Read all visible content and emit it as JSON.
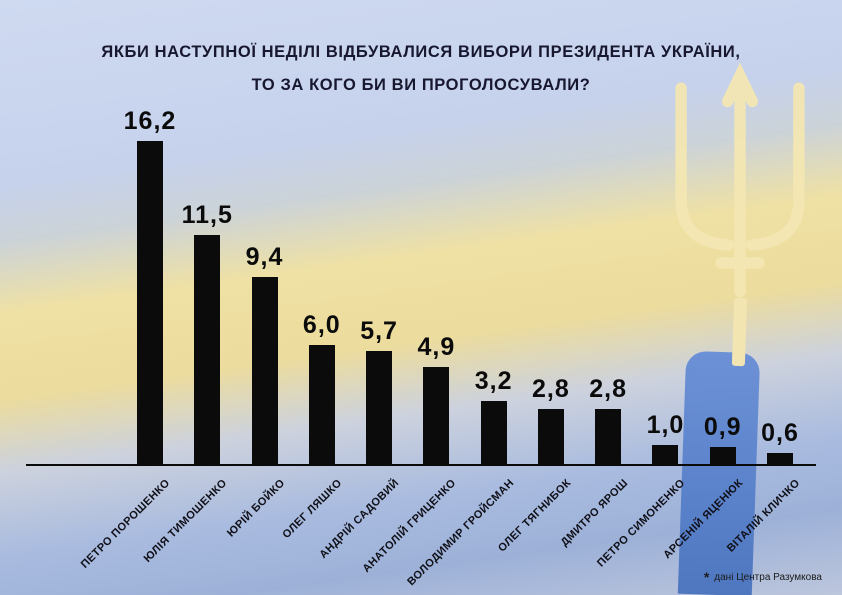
{
  "title": {
    "line1": "ЯКБИ НАСТУПНОЇ НЕДІЛІ ВІДБУВАЛИСЯ ВИБОРИ ПРЕЗИДЕНТА УКРАЇНИ,",
    "line2": "ТО ЗА КОГО БИ ВИ ПРОГОЛОСУВАЛИ?"
  },
  "footnote": {
    "mark": "*",
    "text": "дані Центра Разумкова"
  },
  "colors": {
    "bar": "#0b0b0b",
    "title_text": "#17172f",
    "flag_blue": "#a9bbdf",
    "flag_yellow": "#efe1a4",
    "trident_cream": "#f4e7b3",
    "sleeve_blue": "#5a82ca"
  },
  "chart_data": {
    "type": "bar",
    "title": "ЯКБИ НАСТУПНОЇ НЕДІЛІ ВІДБУВАЛИСЯ ВИБОРИ ПРЕЗИДЕНТА УКРАЇНИ, ТО ЗА КОГО БИ ВИ ПРОГОЛОСУВАЛИ?",
    "categories": [
      "ПЕТРО ПОРОШЕНКО",
      "ЮЛІЯ ТИМОШЕНКО",
      "ЮРІЙ БОЙКО",
      "ОЛЕГ ЛЯШКО",
      "АНДРІЙ САДОВИЙ",
      "АНАТОЛІЙ ГРИЦЕНКО",
      "ВОЛОДИМИР ГРОЙСМАН",
      "ОЛЕГ ТЯГНИБОК",
      "ДМИТРО ЯРОШ",
      "ПЕТРО СИМОНЕНКО",
      "АРСЕНІЙ ЯЦЕНЮК",
      "ВІТАЛІЙ КЛИЧКО"
    ],
    "values": [
      16.2,
      11.5,
      9.4,
      6.0,
      5.7,
      4.9,
      3.2,
      2.8,
      2.8,
      1.0,
      0.9,
      0.6
    ],
    "value_labels": [
      "16,2",
      "11,5",
      "9,4",
      "6,0",
      "5,7",
      "4,9",
      "3,2",
      "2,8",
      "2,8",
      "1,0",
      "0,9",
      "0,6"
    ],
    "xlabel": "",
    "ylabel": "",
    "ylim": [
      0,
      17
    ],
    "grid": false,
    "legend": false,
    "bar_color": "#0b0b0b",
    "source_note": "дані Центра Разумкова"
  }
}
